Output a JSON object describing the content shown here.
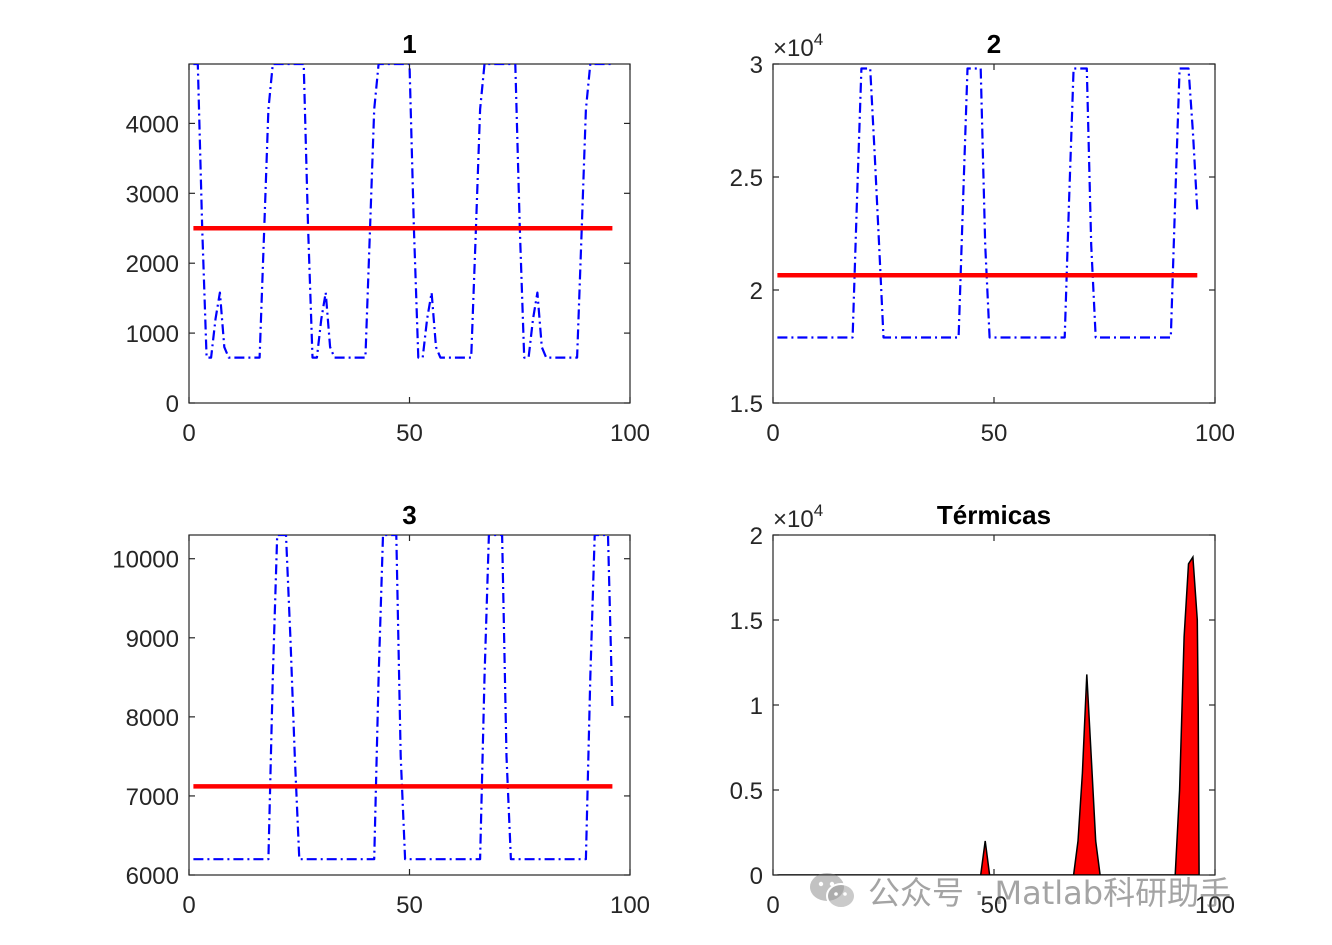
{
  "figure": {
    "watermark": "公众号 · Matlab科研助手",
    "colors": {
      "series_blue": "#0000ff",
      "mean_red": "#ff0000",
      "area_fill": "#ff0000",
      "axes": "#262626"
    }
  },
  "chart_data": [
    {
      "type": "line",
      "title": "1",
      "xlim": [
        0,
        100
      ],
      "ylim": [
        0,
        4850
      ],
      "xticks": [
        0,
        50,
        100
      ],
      "xtick_labels": [
        "0",
        "50",
        "100"
      ],
      "yticks": [
        0,
        1000,
        2000,
        3000,
        4000
      ],
      "ytick_labels": [
        "0",
        "1000",
        "2000",
        "3000",
        "4000"
      ],
      "exponent_label": "",
      "series": [
        {
          "style": "dash-dot",
          "color": "#0000ff",
          "points": [
            [
              1,
              4850
            ],
            [
              2,
              4850
            ],
            [
              3,
              2500
            ],
            [
              4,
              650
            ],
            [
              5,
              650
            ],
            [
              6,
              1200
            ],
            [
              7,
              1580
            ],
            [
              8,
              800
            ],
            [
              9,
              650
            ],
            [
              10,
              650
            ],
            [
              11,
              650
            ],
            [
              12,
              650
            ],
            [
              13,
              650
            ],
            [
              14,
              650
            ],
            [
              15,
              650
            ],
            [
              16,
              650
            ],
            [
              17,
              2400
            ],
            [
              18,
              4200
            ],
            [
              19,
              4850
            ],
            [
              20,
              4850
            ],
            [
              21,
              4850
            ],
            [
              22,
              4850
            ],
            [
              23,
              4850
            ],
            [
              24,
              4850
            ],
            [
              25,
              4850
            ],
            [
              26,
              4850
            ],
            [
              27,
              2500
            ],
            [
              28,
              650
            ],
            [
              29,
              650
            ],
            [
              30,
              1200
            ],
            [
              31,
              1580
            ],
            [
              32,
              800
            ],
            [
              33,
              650
            ],
            [
              34,
              650
            ],
            [
              35,
              650
            ],
            [
              36,
              650
            ],
            [
              37,
              650
            ],
            [
              38,
              650
            ],
            [
              39,
              650
            ],
            [
              40,
              650
            ],
            [
              41,
              2400
            ],
            [
              42,
              4200
            ],
            [
              43,
              4850
            ],
            [
              44,
              4850
            ],
            [
              45,
              4850
            ],
            [
              46,
              4850
            ],
            [
              47,
              4850
            ],
            [
              48,
              4850
            ],
            [
              49,
              4850
            ],
            [
              50,
              4850
            ],
            [
              51,
              2500
            ],
            [
              52,
              650
            ],
            [
              53,
              650
            ],
            [
              54,
              1200
            ],
            [
              55,
              1580
            ],
            [
              56,
              800
            ],
            [
              57,
              650
            ],
            [
              58,
              650
            ],
            [
              59,
              650
            ],
            [
              60,
              650
            ],
            [
              61,
              650
            ],
            [
              62,
              650
            ],
            [
              63,
              650
            ],
            [
              64,
              650
            ],
            [
              65,
              2400
            ],
            [
              66,
              4200
            ],
            [
              67,
              4850
            ],
            [
              68,
              4850
            ],
            [
              69,
              4850
            ],
            [
              70,
              4850
            ],
            [
              71,
              4850
            ],
            [
              72,
              4850
            ],
            [
              73,
              4850
            ],
            [
              74,
              4850
            ],
            [
              75,
              2500
            ],
            [
              76,
              650
            ],
            [
              77,
              650
            ],
            [
              78,
              1200
            ],
            [
              79,
              1580
            ],
            [
              80,
              800
            ],
            [
              81,
              650
            ],
            [
              82,
              650
            ],
            [
              83,
              650
            ],
            [
              84,
              650
            ],
            [
              85,
              650
            ],
            [
              86,
              650
            ],
            [
              87,
              650
            ],
            [
              88,
              650
            ],
            [
              89,
              2400
            ],
            [
              90,
              4200
            ],
            [
              91,
              4850
            ],
            [
              92,
              4850
            ],
            [
              93,
              4850
            ],
            [
              94,
              4850
            ],
            [
              95,
              4850
            ],
            [
              96,
              4850
            ]
          ]
        },
        {
          "style": "solid",
          "color": "#ff0000",
          "points": [
            [
              1,
              2500
            ],
            [
              96,
              2500
            ]
          ]
        }
      ]
    },
    {
      "type": "line",
      "title": "2",
      "xlim": [
        0,
        100
      ],
      "ylim": [
        15000,
        30000
      ],
      "xticks": [
        0,
        50,
        100
      ],
      "xtick_labels": [
        "0",
        "50",
        "100"
      ],
      "yticks": [
        15000,
        20000,
        25000,
        30000
      ],
      "ytick_labels": [
        "1.5",
        "2",
        "2.5",
        "3"
      ],
      "exponent_label": "4",
      "series": [
        {
          "style": "dash-dot",
          "color": "#0000ff",
          "points": [
            [
              1,
              17900
            ],
            [
              18,
              17900
            ],
            [
              19,
              24000
            ],
            [
              20,
              29800
            ],
            [
              22,
              29800
            ],
            [
              23,
              26000
            ],
            [
              24,
              22000
            ],
            [
              25,
              17900
            ],
            [
              42,
              17900
            ],
            [
              43,
              24000
            ],
            [
              44,
              29800
            ],
            [
              47,
              29800
            ],
            [
              48,
              22000
            ],
            [
              49,
              17900
            ],
            [
              66,
              17900
            ],
            [
              67,
              24000
            ],
            [
              68,
              29800
            ],
            [
              71,
              29800
            ],
            [
              72,
              22000
            ],
            [
              73,
              17900
            ],
            [
              90,
              17900
            ],
            [
              91,
              24000
            ],
            [
              92,
              29800
            ],
            [
              94,
              29800
            ],
            [
              95,
              27000
            ],
            [
              96,
              23500
            ]
          ]
        },
        {
          "style": "solid",
          "color": "#ff0000",
          "points": [
            [
              1,
              20650
            ],
            [
              96,
              20650
            ]
          ]
        }
      ]
    },
    {
      "type": "line",
      "title": "3",
      "xlim": [
        0,
        100
      ],
      "ylim": [
        6000,
        10300
      ],
      "xticks": [
        0,
        50,
        100
      ],
      "xtick_labels": [
        "0",
        "50",
        "100"
      ],
      "yticks": [
        6000,
        7000,
        8000,
        9000,
        10000
      ],
      "ytick_labels": [
        "6000",
        "7000",
        "8000",
        "9000",
        "10000"
      ],
      "exponent_label": "",
      "series": [
        {
          "style": "dash-dot",
          "color": "#0000ff",
          "points": [
            [
              1,
              6200
            ],
            [
              18,
              6200
            ],
            [
              19,
              8500
            ],
            [
              20,
              10300
            ],
            [
              22,
              10300
            ],
            [
              23,
              9000
            ],
            [
              24,
              7500
            ],
            [
              25,
              6200
            ],
            [
              42,
              6200
            ],
            [
              43,
              8500
            ],
            [
              44,
              10300
            ],
            [
              47,
              10300
            ],
            [
              48,
              7500
            ],
            [
              49,
              6200
            ],
            [
              66,
              6200
            ],
            [
              67,
              8500
            ],
            [
              68,
              10300
            ],
            [
              71,
              10300
            ],
            [
              72,
              7500
            ],
            [
              73,
              6200
            ],
            [
              90,
              6200
            ],
            [
              91,
              8500
            ],
            [
              92,
              10300
            ],
            [
              95,
              10300
            ],
            [
              96,
              8100
            ]
          ]
        },
        {
          "style": "solid",
          "color": "#ff0000",
          "points": [
            [
              1,
              7120
            ],
            [
              96,
              7120
            ]
          ]
        }
      ]
    },
    {
      "type": "area",
      "title": "Térmicas",
      "xlim": [
        0,
        100
      ],
      "ylim": [
        0,
        20000
      ],
      "xticks": [
        0,
        50,
        100
      ],
      "xtick_labels": [
        "0",
        "50",
        "100"
      ],
      "yticks": [
        0,
        5000,
        10000,
        15000,
        20000
      ],
      "ytick_labels": [
        "0",
        "0.5",
        "1",
        "1.5",
        "2"
      ],
      "exponent_label": "4",
      "series": [
        {
          "style": "area",
          "color": "#ff0000",
          "edge": "#000000",
          "points": [
            [
              1,
              0
            ],
            [
              47,
              0
            ],
            [
              48,
              2000
            ],
            [
              49,
              0
            ],
            [
              68,
              0
            ],
            [
              69,
              2000
            ],
            [
              70,
              6000
            ],
            [
              71,
              11800
            ],
            [
              72,
              7000
            ],
            [
              73,
              2000
            ],
            [
              74,
              0
            ],
            [
              91,
              0
            ],
            [
              92,
              5000
            ],
            [
              93,
              14000
            ],
            [
              94,
              18300
            ],
            [
              95,
              18700
            ],
            [
              96,
              15000
            ],
            [
              96.2,
              10000
            ],
            [
              96.4,
              0
            ]
          ]
        }
      ]
    }
  ]
}
